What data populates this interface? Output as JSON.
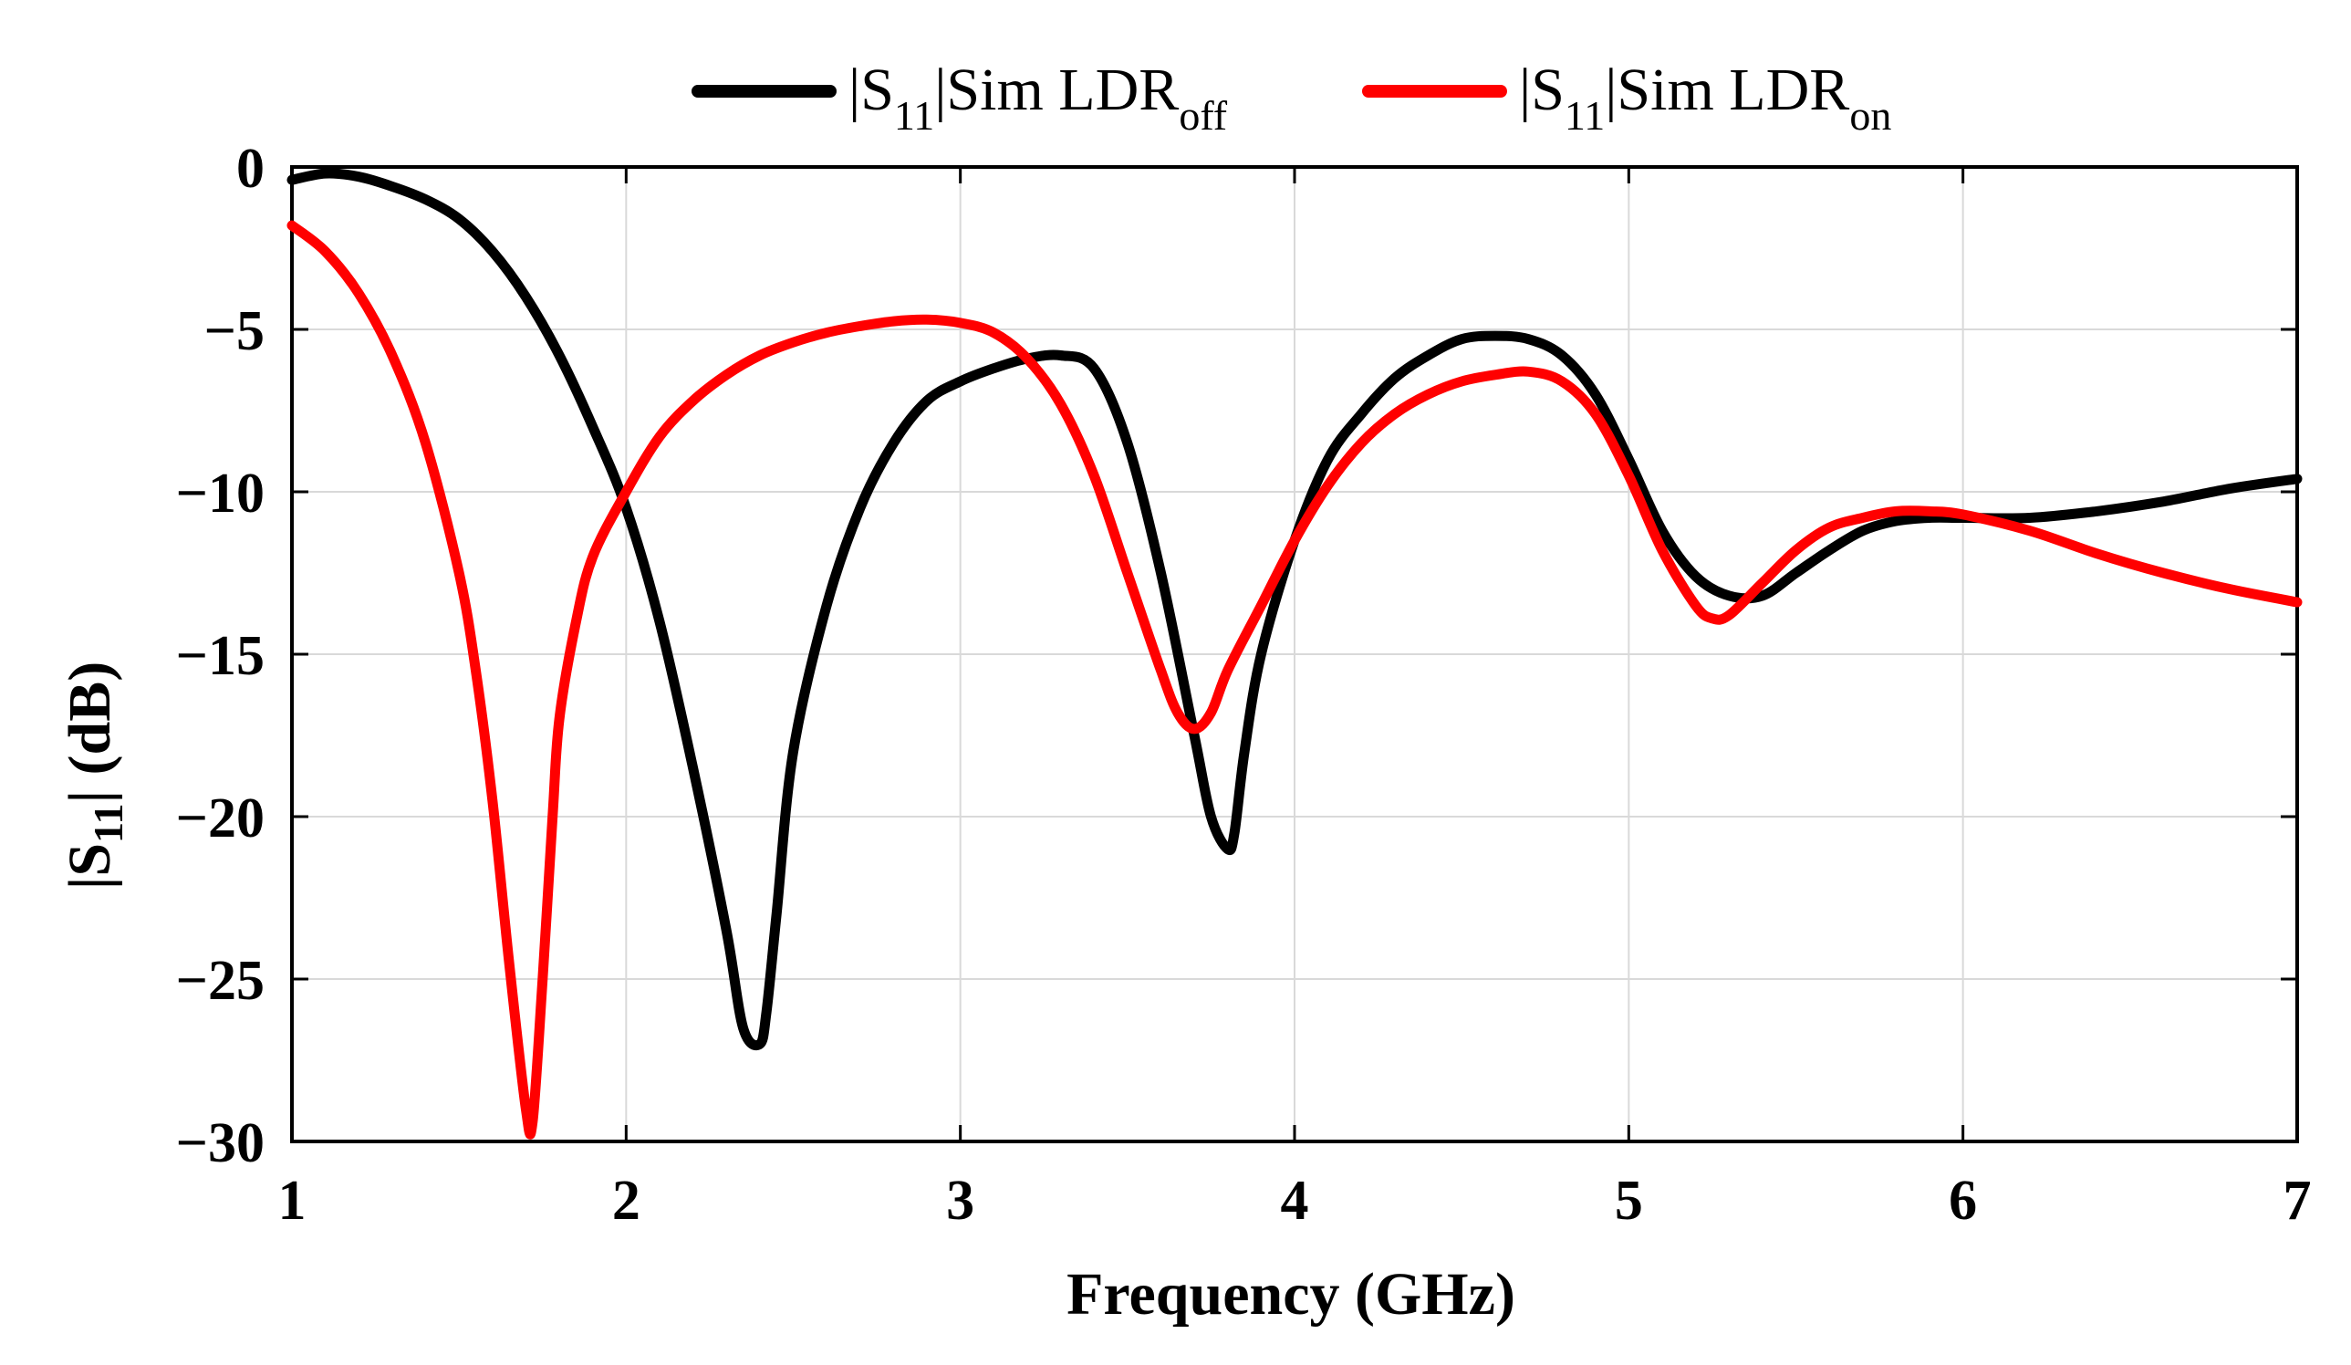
{
  "chart_data": {
    "type": "line",
    "title": "",
    "xlabel": "Frequency (GHz)",
    "ylabel": {
      "prefix": "|S",
      "sub": "11",
      "suffix": "| (dB)"
    },
    "xlim": [
      1,
      7
    ],
    "ylim": [
      -30,
      0
    ],
    "xticks": [
      1,
      2,
      3,
      4,
      5,
      6,
      7
    ],
    "yticks": [
      0,
      -5,
      -10,
      -15,
      -20,
      -25,
      -30
    ],
    "xtick_labels": [
      "1",
      "2",
      "3",
      "4",
      "5",
      "6",
      "7"
    ],
    "ytick_labels": [
      "0",
      "−5",
      "−10",
      "−15",
      "−20",
      "−25",
      "−30"
    ],
    "grid": true,
    "legend_position": "top-center",
    "series": [
      {
        "name": "|S11|Sim LDRoff",
        "label": {
          "prefix": "|S",
          "sub": "11",
          "mid": "|Sim LDR",
          "sub2": "off"
        },
        "color": "#000000",
        "x": [
          1.0,
          1.1,
          1.2,
          1.3,
          1.4,
          1.5,
          1.6,
          1.7,
          1.8,
          1.9,
          2.0,
          2.1,
          2.2,
          2.3,
          2.35,
          2.4,
          2.42,
          2.45,
          2.5,
          2.6,
          2.7,
          2.8,
          2.9,
          3.0,
          3.1,
          3.2,
          3.3,
          3.4,
          3.5,
          3.6,
          3.7,
          3.75,
          3.8,
          3.82,
          3.85,
          3.9,
          4.0,
          4.1,
          4.2,
          4.3,
          4.4,
          4.5,
          4.6,
          4.7,
          4.8,
          4.9,
          5.0,
          5.1,
          5.2,
          5.3,
          5.4,
          5.5,
          5.6,
          5.7,
          5.8,
          5.9,
          6.0,
          6.2,
          6.4,
          6.6,
          6.8,
          7.0
        ],
        "y": [
          -0.4,
          -0.2,
          -0.3,
          -0.6,
          -1.0,
          -1.6,
          -2.6,
          -4.0,
          -5.8,
          -8.0,
          -10.5,
          -14.0,
          -18.5,
          -23.5,
          -26.5,
          -27.0,
          -26.0,
          -23.0,
          -18.0,
          -13.5,
          -10.5,
          -8.5,
          -7.2,
          -6.6,
          -6.2,
          -5.9,
          -5.8,
          -6.2,
          -8.5,
          -12.5,
          -17.5,
          -20.0,
          -21.0,
          -20.5,
          -18.0,
          -15.0,
          -11.5,
          -9.0,
          -7.6,
          -6.5,
          -5.8,
          -5.3,
          -5.2,
          -5.3,
          -5.8,
          -7.0,
          -9.0,
          -11.2,
          -12.6,
          -13.2,
          -13.2,
          -12.5,
          -11.8,
          -11.2,
          -10.9,
          -10.8,
          -10.8,
          -10.8,
          -10.6,
          -10.3,
          -9.9,
          -9.6
        ]
      },
      {
        "name": "|S11|Sim LDRon",
        "label": {
          "prefix": "|S",
          "sub": "11",
          "mid": "|Sim LDR",
          "sub2": "on"
        },
        "color": "#ff0000",
        "x": [
          1.0,
          1.1,
          1.2,
          1.3,
          1.4,
          1.5,
          1.55,
          1.6,
          1.65,
          1.7,
          1.72,
          1.75,
          1.78,
          1.8,
          1.85,
          1.9,
          2.0,
          2.1,
          2.2,
          2.3,
          2.4,
          2.5,
          2.6,
          2.7,
          2.8,
          2.9,
          3.0,
          3.1,
          3.2,
          3.3,
          3.4,
          3.5,
          3.6,
          3.65,
          3.7,
          3.75,
          3.8,
          3.9,
          4.0,
          4.1,
          4.2,
          4.3,
          4.4,
          4.5,
          4.6,
          4.7,
          4.8,
          4.9,
          5.0,
          5.1,
          5.2,
          5.25,
          5.3,
          5.4,
          5.5,
          5.6,
          5.7,
          5.8,
          5.9,
          6.0,
          6.2,
          6.4,
          6.6,
          6.8,
          7.0
        ],
        "y": [
          -1.8,
          -2.6,
          -3.9,
          -5.8,
          -8.5,
          -12.5,
          -15.5,
          -19.5,
          -24.5,
          -29.0,
          -29.4,
          -25.0,
          -20.0,
          -17.0,
          -14.0,
          -12.0,
          -10.0,
          -8.3,
          -7.2,
          -6.4,
          -5.8,
          -5.4,
          -5.1,
          -4.9,
          -4.75,
          -4.7,
          -4.8,
          -5.1,
          -5.9,
          -7.3,
          -9.5,
          -12.5,
          -15.5,
          -16.8,
          -17.3,
          -16.8,
          -15.5,
          -13.5,
          -11.5,
          -9.8,
          -8.5,
          -7.6,
          -7.0,
          -6.6,
          -6.4,
          -6.3,
          -6.6,
          -7.6,
          -9.5,
          -11.8,
          -13.5,
          -13.9,
          -13.8,
          -12.8,
          -11.8,
          -11.1,
          -10.8,
          -10.6,
          -10.6,
          -10.7,
          -11.2,
          -11.9,
          -12.5,
          -13.0,
          -13.4
        ]
      }
    ]
  }
}
